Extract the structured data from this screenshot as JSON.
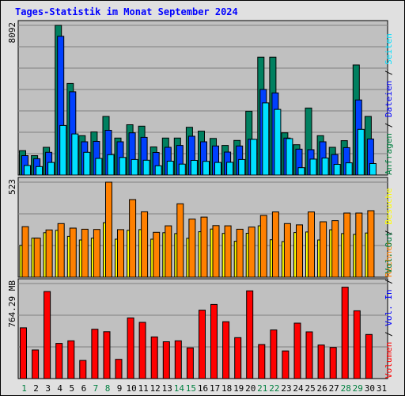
{
  "title": "Tages-Statistik im Monat September 2024",
  "chart_data": [
    {
      "type": "bar",
      "panel": "top",
      "y_max_label": "8092",
      "ylim": [
        0,
        8092
      ],
      "right_label": [
        {
          "text": "Anfragen",
          "color": "#008040"
        },
        {
          "text": " / ",
          "color": "#000000"
        },
        {
          "text": "Dateien",
          "color": "#0000ff"
        },
        {
          "text": " / ",
          "color": "#000000"
        },
        {
          "text": "Seiten",
          "color": "#00e0ff"
        }
      ],
      "categories": [
        "1",
        "2",
        "3",
        "4",
        "5",
        "6",
        "7",
        "8",
        "9",
        "10",
        "11",
        "12",
        "13",
        "14",
        "15",
        "16",
        "17",
        "18",
        "19",
        "20",
        "21",
        "22",
        "23",
        "24",
        "25",
        "26",
        "27",
        "28",
        "29",
        "30",
        "31"
      ],
      "series": [
        {
          "name": "Anfragen",
          "color": "#008060",
          "values": [
            1320,
            1050,
            1500,
            8092,
            4950,
            2130,
            2330,
            3170,
            2000,
            2720,
            2640,
            1520,
            2000,
            2000,
            2580,
            2370,
            1980,
            1600,
            1870,
            3450,
            6370,
            6370,
            2280,
            1640,
            3620,
            2130,
            1500,
            1860,
            5950,
            3170,
            null
          ]
        },
        {
          "name": "Dateien",
          "color": "#0040ff",
          "values": [
            1050,
            880,
            1230,
            7500,
            4500,
            1800,
            1820,
            2420,
            1800,
            2280,
            2040,
            1220,
            1500,
            1600,
            2100,
            1800,
            1570,
            1240,
            1570,
            1930,
            4630,
            4440,
            2000,
            1400,
            1370,
            1800,
            1110,
            1480,
            4060,
            1950,
            null
          ]
        },
        {
          "name": "Seiten",
          "color": "#00e0ff",
          "values": [
            520,
            460,
            680,
            2680,
            2220,
            1230,
            900,
            1100,
            950,
            840,
            800,
            500,
            750,
            590,
            790,
            740,
            680,
            690,
            840,
            1930,
            3900,
            3550,
            1970,
            400,
            860,
            920,
            580,
            660,
            2470,
            620,
            null
          ]
        }
      ],
      "grid": true
    },
    {
      "type": "bar",
      "panel": "middle",
      "y_max_label": "523",
      "ylim": [
        0,
        523
      ],
      "right_label": [
        {
          "text": "Rechner",
          "color": "#ff8000"
        },
        {
          "text": " / ",
          "color": "#000000"
        },
        {
          "text": "Besuche",
          "color": "#ffff00"
        }
      ],
      "categories": [
        "1",
        "2",
        "3",
        "4",
        "5",
        "6",
        "7",
        "8",
        "9",
        "10",
        "11",
        "12",
        "13",
        "14",
        "15",
        "16",
        "17",
        "18",
        "19",
        "20",
        "21",
        "22",
        "23",
        "24",
        "25",
        "26",
        "27",
        "28",
        "29",
        "30",
        "31"
      ],
      "series": [
        {
          "name": "Besuche",
          "color": "#ffff00",
          "values": [
            175,
            215,
            245,
            258,
            225,
            205,
            215,
            300,
            209,
            258,
            262,
            209,
            245,
            240,
            214,
            250,
            265,
            241,
            198,
            242,
            283,
            206,
            196,
            246,
            249,
            205,
            261,
            240,
            236,
            243,
            null
          ]
        },
        {
          "name": "Rechner",
          "color": "#ff8000",
          "values": [
            278,
            215,
            260,
            295,
            270,
            264,
            263,
            523,
            262,
            427,
            360,
            247,
            283,
            404,
            320,
            331,
            284,
            283,
            264,
            276,
            340,
            359,
            295,
            288,
            359,
            305,
            311,
            353,
            353,
            366,
            null
          ]
        }
      ],
      "grid": true
    },
    {
      "type": "bar",
      "panel": "bottom",
      "y_max_label": "764.29 MB",
      "ylim": [
        0,
        764.29
      ],
      "right_label": [
        {
          "text": "Volumen",
          "color": "#ff0000"
        },
        {
          "text": " / ",
          "color": "#000000"
        },
        {
          "text": "Vol. In",
          "color": "#0000ff"
        },
        {
          "text": " / ",
          "color": "#000000"
        },
        {
          "text": "Vol. Out",
          "color": "#008040"
        }
      ],
      "categories": [
        "1",
        "2",
        "3",
        "4",
        "5",
        "6",
        "7",
        "8",
        "9",
        "10",
        "11",
        "12",
        "13",
        "14",
        "15",
        "16",
        "17",
        "18",
        "19",
        "20",
        "21",
        "22",
        "23",
        "24",
        "25",
        "26",
        "27",
        "28",
        "29",
        "30",
        "31"
      ],
      "series": [
        {
          "name": "Volumen",
          "color": "#ff0000",
          "values": [
            408,
            230,
            700,
            283,
            304,
            146,
            397,
            377,
            155,
            488,
            452,
            335,
            296,
            304,
            247,
            550,
            596,
            457,
            329,
            706,
            274,
            391,
            222,
            446,
            376,
            270,
            250,
            735,
            545,
            355,
            null
          ]
        }
      ],
      "grid": true
    }
  ],
  "x_tick_colors": {
    "weekday": "#000000",
    "weekend": "#008040"
  },
  "weekend_days": [
    "1",
    "7",
    "8",
    "14",
    "15",
    "21",
    "22",
    "28",
    "29"
  ]
}
